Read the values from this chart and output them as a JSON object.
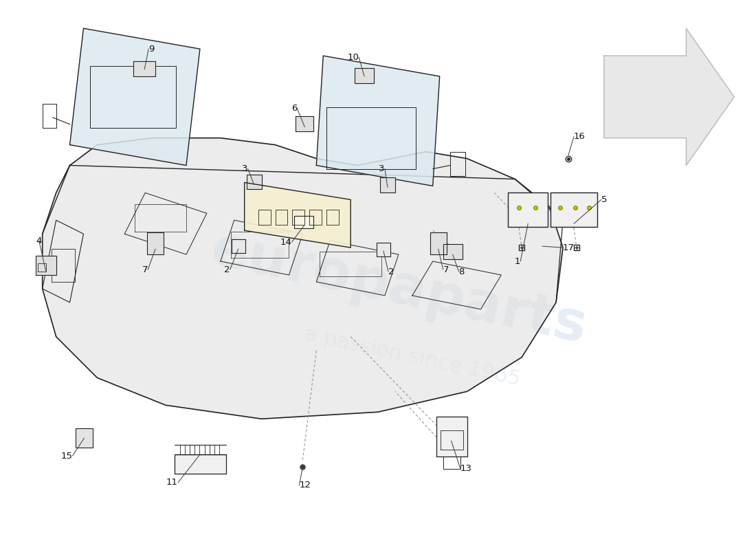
{
  "background_color": "#ffffff",
  "line_color": "#222222",
  "label_color": "#111111",
  "watermark_main": "europaparts",
  "watermark_sub": "a passion since 1965",
  "parts_labels": [
    "1",
    "2",
    "2",
    "3",
    "3",
    "4",
    "5",
    "6",
    "7",
    "7",
    "8",
    "9",
    "10",
    "11",
    "12",
    "13",
    "14",
    "15",
    "16",
    "17"
  ]
}
